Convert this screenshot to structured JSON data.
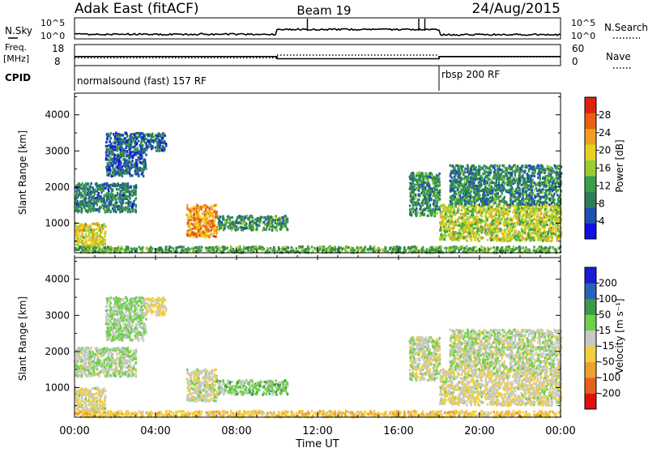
{
  "header": {
    "station": "Adak East (fitACF)",
    "beam": "Beam 19",
    "date": "24/Aug/2015"
  },
  "xaxis": {
    "label": "Time UT",
    "ticks": [
      "00:00",
      "04:00",
      "08:00",
      "12:00",
      "16:00",
      "20:00",
      "00:00"
    ],
    "range_hours": [
      0,
      24
    ]
  },
  "nsky": {
    "label": "N.Sky",
    "right_label": "N.Search",
    "ticks": [
      "10^5",
      "10^0"
    ],
    "levels": [
      {
        "t0": 0,
        "t1": 10,
        "value": 0.22
      },
      {
        "t0": 10,
        "t1": 18,
        "value": 0.45
      },
      {
        "t0": 18,
        "t1": 24,
        "value": 0.2
      }
    ],
    "spikes_hours": [
      11.5,
      17.0,
      17.3
    ]
  },
  "freq": {
    "label_top": "Freq.",
    "label_bottom": "[MHz]",
    "ticks": [
      "18",
      "8"
    ],
    "right_label": "Nave",
    "right_ticks": [
      "60",
      "0"
    ],
    "segments": [
      {
        "t0": 0,
        "t1": 10,
        "freq": 12.0,
        "nave": 22
      },
      {
        "t0": 10,
        "t1": 18,
        "freq": 10.5,
        "nave": 30
      },
      {
        "t0": 18,
        "t1": 24,
        "freq": 12.0,
        "nave": 25
      }
    ]
  },
  "cpid": {
    "label": "CPID",
    "modes": [
      {
        "t0": 0,
        "text": "normalsound (fast) 157 RF"
      },
      {
        "t0": 18,
        "text": "rbsp 200 RF"
      }
    ]
  },
  "power": {
    "ylabel": "Slant Range [km]",
    "yticks": [
      "1000",
      "2000",
      "3000",
      "4000"
    ],
    "ytick_values": [
      1000,
      2000,
      3000,
      4000
    ],
    "yrange": [
      180,
      4600
    ],
    "colorbar_label": "Power [dB]",
    "colorbar_ticks": [
      "4",
      "8",
      "12",
      "16",
      "20",
      "24",
      "28"
    ],
    "colorbar_range": [
      0,
      30
    ],
    "colors": [
      "#1010e0",
      "#2050b0",
      "#2e7d58",
      "#3aa048",
      "#9acd32",
      "#e8d020",
      "#f0a020",
      "#e86010",
      "#e02010"
    ]
  },
  "velocity": {
    "ylabel": "Slant Range [km]",
    "yticks": [
      "1000",
      "2000",
      "3000",
      "4000"
    ],
    "colorbar_label": "Velocity [m s⁻¹]",
    "colorbar_ticks": [
      "200",
      "100",
      "50",
      "15",
      "-15",
      "-50",
      "-100",
      "-200"
    ],
    "colors": [
      "#1c1cd0",
      "#2a62b8",
      "#3a9a48",
      "#6ed04a",
      "#c8c8c8",
      "#f0d040",
      "#f0a030",
      "#e86020",
      "#e01010"
    ]
  },
  "chart_data": {
    "type": "heatmap",
    "title": "Adak East (fitACF) Beam 19 24/Aug/2015",
    "xlabel": "Time UT",
    "ylabel": "Slant Range [km]",
    "xlim_hours": [
      0,
      24
    ],
    "ylim_km": [
      180,
      4600
    ],
    "echo_regions": [
      {
        "t0": 0.0,
        "t1": 1.5,
        "r0": 300,
        "r1": 1000,
        "power_db": 18,
        "velocity": -10
      },
      {
        "t0": 0.0,
        "t1": 3.0,
        "r0": 1300,
        "r1": 2100,
        "power_db": 8,
        "velocity": 10
      },
      {
        "t0": 1.5,
        "t1": 3.5,
        "r0": 2300,
        "r1": 3500,
        "power_db": 6,
        "velocity": 20
      },
      {
        "t0": 3.5,
        "t1": 4.5,
        "r0": 3000,
        "r1": 3500,
        "power_db": 6,
        "velocity": -20
      },
      {
        "t0": 5.5,
        "t1": 7.0,
        "r0": 600,
        "r1": 1500,
        "power_db": 22,
        "velocity": -5
      },
      {
        "t0": 7.0,
        "t1": 10.5,
        "r0": 800,
        "r1": 1200,
        "power_db": 10,
        "velocity": 30
      },
      {
        "t0": 16.5,
        "t1": 18.0,
        "r0": 1200,
        "r1": 2400,
        "power_db": 10,
        "velocity": 0
      },
      {
        "t0": 18.0,
        "t1": 24.0,
        "r0": 500,
        "r1": 1500,
        "power_db": 16,
        "velocity": -10
      },
      {
        "t0": 18.5,
        "t1": 24.0,
        "r0": 1500,
        "r1": 2600,
        "power_db": 9,
        "velocity": 5
      },
      {
        "t0": 0.0,
        "t1": 24.0,
        "r0": 180,
        "r1": 350,
        "power_db": 12,
        "velocity": -40
      }
    ]
  }
}
